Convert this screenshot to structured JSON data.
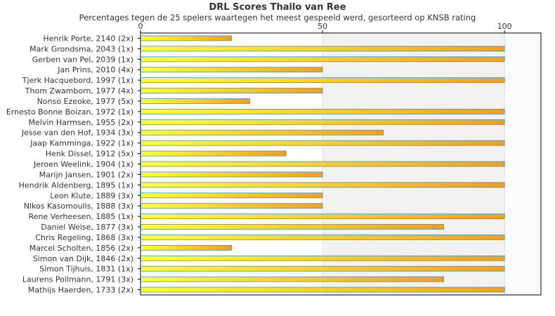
{
  "chart_data": {
    "type": "bar",
    "orientation": "horizontal",
    "title": "DRL Scores Thailo van Ree",
    "subtitle": "Percentages tegen de 25 spelers waartegen het meest gespeeld werd, gesorteerd op KNSB rating",
    "xlabel": "",
    "ylabel": "",
    "xlim": [
      0,
      110
    ],
    "x_ticks": [
      0,
      50,
      100
    ],
    "x_axis_position": "top",
    "grid": true,
    "legend": "none",
    "categories": [
      "Henrik Porte, 2140 (2x)",
      "Mark Grondsma, 2043 (1x)",
      "Gerben van Pel, 2039 (1x)",
      "Jan Prins, 2010 (4x)",
      "Tjerk Hacquebord, 1997 (1x)",
      "Thom Zwamborn, 1977 (4x)",
      "Nonso Ezeoke, 1977 (5x)",
      "Ernesto Bonne Boizan, 1972 (1x)",
      "Melvin Harmsen, 1955 (2x)",
      "Jesse van den Hof, 1934 (3x)",
      "Jaap Kamminga, 1922 (1x)",
      "Henk Dissel, 1912 (5x)",
      "Jeroen Weelink, 1904 (1x)",
      "Marijn Jansen, 1901 (2x)",
      "Hendrik Aldenberg, 1895 (1x)",
      "Leon Klute, 1889 (3x)",
      "Nikos Kasomoulis, 1888 (3x)",
      "Rene Verheesen, 1885 (1x)",
      "Daniel Weise, 1877 (3x)",
      "Chris Regeling, 1868 (3x)",
      "Marcel Scholten, 1856 (2x)",
      "Simon van Dijk, 1846 (2x)",
      "Simon Tijhuis, 1831 (1x)",
      "Laurens Pollmann, 1791 (3x)",
      "Mathijs Haerden, 1733 (2x)"
    ],
    "values": [
      25,
      100,
      100,
      50,
      100,
      50,
      30,
      100,
      100,
      66.7,
      100,
      40,
      100,
      50,
      100,
      50,
      50,
      100,
      83.3,
      100,
      25,
      100,
      100,
      83.3,
      100
    ],
    "colors": {
      "bar_start": "#ffff33",
      "bar_end": "#f0a020",
      "bar_stroke": "#4a90c8",
      "band_shade": "#f2f2f2",
      "grid": "#dddddd",
      "axis": "#000000",
      "text": "#333333"
    }
  }
}
